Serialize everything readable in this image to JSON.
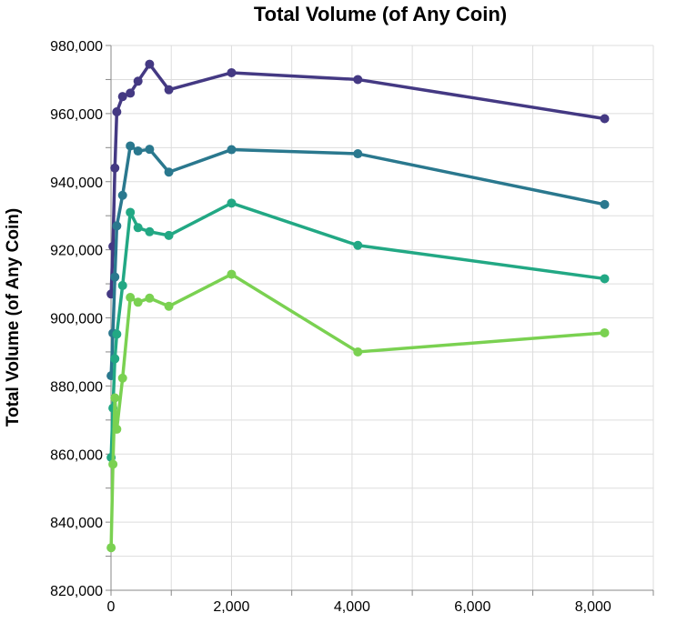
{
  "chart_data": {
    "type": "line",
    "title": "Total Volume (of Any Coin)",
    "xlabel": "",
    "ylabel": "Total Volume (of Any Coin)",
    "xlim": [
      0,
      9000
    ],
    "ylim": [
      820000,
      980000
    ],
    "x_ticks": [
      0,
      2000,
      4000,
      6000,
      8000
    ],
    "x_tick_labels": [
      "0",
      "2,000",
      "4,000",
      "6,000",
      "8,000"
    ],
    "y_ticks": [
      820000,
      840000,
      860000,
      880000,
      900000,
      920000,
      940000,
      960000,
      980000
    ],
    "y_tick_labels": [
      "820,000",
      "840,000",
      "860,000",
      "880,000",
      "900,000",
      "920,000",
      "940,000",
      "960,000",
      "980,000"
    ],
    "grid": true,
    "legend": "none",
    "series": [
      {
        "color": "#443983",
        "points": [
          [
            2,
            907000
          ],
          [
            32,
            921000
          ],
          [
            64,
            944000
          ],
          [
            96,
            960500
          ],
          [
            192,
            965000
          ],
          [
            320,
            966000
          ],
          [
            448,
            969500
          ],
          [
            640,
            974500
          ],
          [
            960,
            967000
          ],
          [
            2000,
            972000
          ],
          [
            4096,
            970000
          ],
          [
            8192,
            958500
          ]
        ]
      },
      {
        "color": "#2a788e",
        "points": [
          [
            2,
            883000
          ],
          [
            32,
            895500
          ],
          [
            64,
            912000
          ],
          [
            96,
            927000
          ],
          [
            192,
            936000
          ],
          [
            320,
            950500
          ],
          [
            448,
            949000
          ],
          [
            640,
            949500
          ],
          [
            960,
            942800
          ],
          [
            2000,
            949400
          ],
          [
            4096,
            948200
          ],
          [
            8192,
            933300
          ]
        ]
      },
      {
        "color": "#22a884",
        "points": [
          [
            2,
            859000
          ],
          [
            32,
            873500
          ],
          [
            64,
            888000
          ],
          [
            96,
            895200
          ],
          [
            192,
            909500
          ],
          [
            320,
            931000
          ],
          [
            448,
            926500
          ],
          [
            640,
            925300
          ],
          [
            960,
            924200
          ],
          [
            2000,
            933700
          ],
          [
            4096,
            921300
          ],
          [
            8192,
            911500
          ]
        ]
      },
      {
        "color": "#7ad151",
        "points": [
          [
            2,
            832500
          ],
          [
            32,
            857000
          ],
          [
            64,
            876500
          ],
          [
            96,
            867300
          ],
          [
            192,
            882300
          ],
          [
            320,
            906000
          ],
          [
            448,
            904600
          ],
          [
            640,
            905800
          ],
          [
            960,
            903400
          ],
          [
            2000,
            912800
          ],
          [
            4096,
            890000
          ],
          [
            8192,
            895600
          ]
        ]
      }
    ]
  }
}
